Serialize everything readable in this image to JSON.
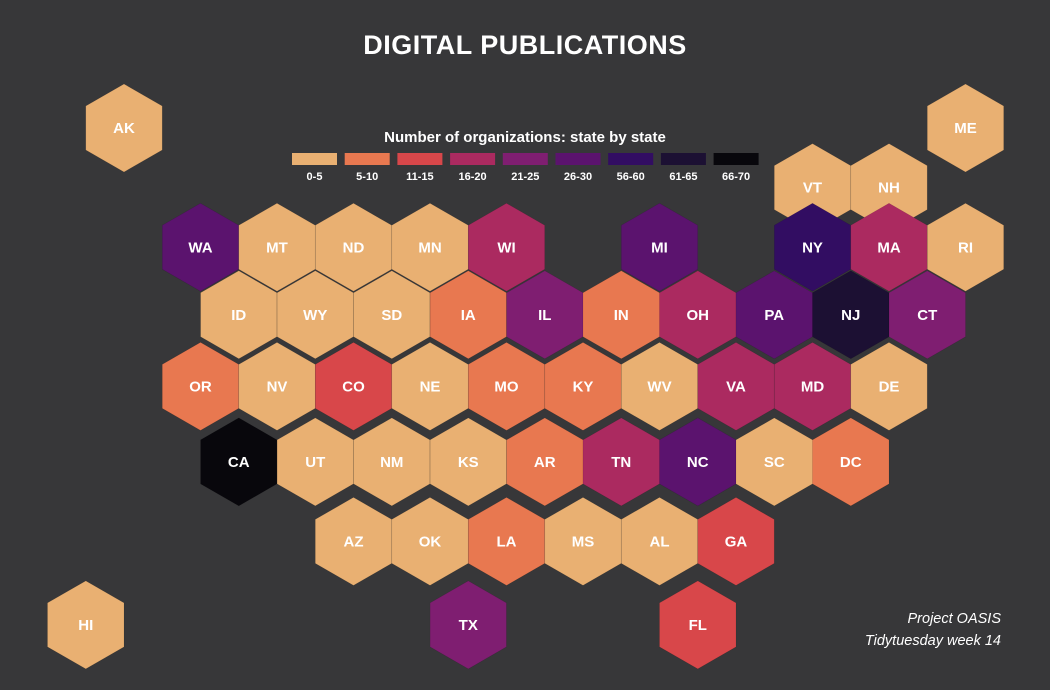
{
  "title": "DIGITAL PUBLICATIONS",
  "caption": {
    "line1": "Project OASIS",
    "line2": "Tidytuesday week 14"
  },
  "colors": {
    "background": "#373739",
    "text": "#ffffff",
    "hex_border": "#d89a5e"
  },
  "chart_data": {
    "type": "heatmap",
    "subtype": "hexbin-map",
    "title": "DIGITAL PUBLICATIONS",
    "legend": {
      "title": "Number of organizations: state by state",
      "placement": "top-center",
      "bins": [
        {
          "label": "0-5",
          "color": "#e9b072"
        },
        {
          "label": "5-10",
          "color": "#e87850"
        },
        {
          "label": "11-15",
          "color": "#d8474a"
        },
        {
          "label": "16-20",
          "color": "#ab2a60"
        },
        {
          "label": "21-25",
          "color": "#7f1e71"
        },
        {
          "label": "26-30",
          "color": "#5b136e"
        },
        {
          "label": "56-60",
          "color": "#320d62"
        },
        {
          "label": "61-65",
          "color": "#1c1033"
        },
        {
          "label": "66-70",
          "color": "#08070c"
        }
      ]
    },
    "states": [
      {
        "abbr": "AK",
        "bin": "0-5",
        "col": 0,
        "row": 0
      },
      {
        "abbr": "ME",
        "bin": "0-5",
        "col": 11,
        "row": 0
      },
      {
        "abbr": "VT",
        "bin": "0-5",
        "col": 9,
        "row": 0.75
      },
      {
        "abbr": "NH",
        "bin": "0-5",
        "col": 10,
        "row": 0.75
      },
      {
        "abbr": "WA",
        "bin": "26-30",
        "col": 1,
        "row": 1.5
      },
      {
        "abbr": "MT",
        "bin": "0-5",
        "col": 2,
        "row": 1.5
      },
      {
        "abbr": "ND",
        "bin": "0-5",
        "col": 3,
        "row": 1.5
      },
      {
        "abbr": "MN",
        "bin": "0-5",
        "col": 4,
        "row": 1.5
      },
      {
        "abbr": "WI",
        "bin": "16-20",
        "col": 5,
        "row": 1.5
      },
      {
        "abbr": "MI",
        "bin": "26-30",
        "col": 7,
        "row": 1.5
      },
      {
        "abbr": "NY",
        "bin": "56-60",
        "col": 9,
        "row": 1.5
      },
      {
        "abbr": "MA",
        "bin": "16-20",
        "col": 10,
        "row": 1.5
      },
      {
        "abbr": "RI",
        "bin": "0-5",
        "col": 11,
        "row": 1.5
      },
      {
        "abbr": "ID",
        "bin": "0-5",
        "col": 1.5,
        "row": 2.35
      },
      {
        "abbr": "WY",
        "bin": "0-5",
        "col": 2.5,
        "row": 2.35
      },
      {
        "abbr": "SD",
        "bin": "0-5",
        "col": 3.5,
        "row": 2.35
      },
      {
        "abbr": "IA",
        "bin": "5-10",
        "col": 4.5,
        "row": 2.35
      },
      {
        "abbr": "IL",
        "bin": "21-25",
        "col": 5.5,
        "row": 2.35
      },
      {
        "abbr": "IN",
        "bin": "5-10",
        "col": 6.5,
        "row": 2.35
      },
      {
        "abbr": "OH",
        "bin": "16-20",
        "col": 7.5,
        "row": 2.35
      },
      {
        "abbr": "PA",
        "bin": "26-30",
        "col": 8.5,
        "row": 2.35
      },
      {
        "abbr": "NJ",
        "bin": "61-65",
        "col": 9.5,
        "row": 2.35
      },
      {
        "abbr": "CT",
        "bin": "21-25",
        "col": 10.5,
        "row": 2.35
      },
      {
        "abbr": "OR",
        "bin": "5-10",
        "col": 1,
        "row": 3.25
      },
      {
        "abbr": "NV",
        "bin": "0-5",
        "col": 2,
        "row": 3.25
      },
      {
        "abbr": "CO",
        "bin": "11-15",
        "col": 3,
        "row": 3.25
      },
      {
        "abbr": "NE",
        "bin": "0-5",
        "col": 4,
        "row": 3.25
      },
      {
        "abbr": "MO",
        "bin": "5-10",
        "col": 5,
        "row": 3.25
      },
      {
        "abbr": "KY",
        "bin": "5-10",
        "col": 6,
        "row": 3.25
      },
      {
        "abbr": "WV",
        "bin": "0-5",
        "col": 7,
        "row": 3.25
      },
      {
        "abbr": "VA",
        "bin": "16-20",
        "col": 8,
        "row": 3.25
      },
      {
        "abbr": "MD",
        "bin": "16-20",
        "col": 9,
        "row": 3.25
      },
      {
        "abbr": "DE",
        "bin": "0-5",
        "col": 10,
        "row": 3.25
      },
      {
        "abbr": "CA",
        "bin": "66-70",
        "col": 1.5,
        "row": 4.2
      },
      {
        "abbr": "UT",
        "bin": "0-5",
        "col": 2.5,
        "row": 4.2
      },
      {
        "abbr": "NM",
        "bin": "0-5",
        "col": 3.5,
        "row": 4.2
      },
      {
        "abbr": "KS",
        "bin": "0-5",
        "col": 4.5,
        "row": 4.2
      },
      {
        "abbr": "AR",
        "bin": "5-10",
        "col": 5.5,
        "row": 4.2
      },
      {
        "abbr": "TN",
        "bin": "16-20",
        "col": 6.5,
        "row": 4.2
      },
      {
        "abbr": "NC",
        "bin": "26-30",
        "col": 7.5,
        "row": 4.2
      },
      {
        "abbr": "SC",
        "bin": "0-5",
        "col": 8.5,
        "row": 4.2
      },
      {
        "abbr": "DC",
        "bin": "5-10",
        "col": 9.5,
        "row": 4.2
      },
      {
        "abbr": "AZ",
        "bin": "0-5",
        "col": 3,
        "row": 5.2
      },
      {
        "abbr": "OK",
        "bin": "0-5",
        "col": 4,
        "row": 5.2
      },
      {
        "abbr": "LA",
        "bin": "5-10",
        "col": 5,
        "row": 5.2
      },
      {
        "abbr": "MS",
        "bin": "0-5",
        "col": 6,
        "row": 5.2
      },
      {
        "abbr": "AL",
        "bin": "0-5",
        "col": 7,
        "row": 5.2
      },
      {
        "abbr": "GA",
        "bin": "11-15",
        "col": 8,
        "row": 5.2
      },
      {
        "abbr": "HI",
        "bin": "0-5",
        "col": -0.5,
        "row": 6.25
      },
      {
        "abbr": "TX",
        "bin": "21-25",
        "col": 4.5,
        "row": 6.25
      },
      {
        "abbr": "FL",
        "bin": "11-15",
        "col": 7.5,
        "row": 6.25
      }
    ]
  }
}
